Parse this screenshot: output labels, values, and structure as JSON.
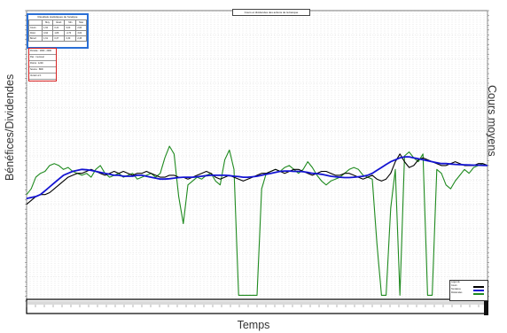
{
  "chart_data": {
    "type": "line",
    "title": "",
    "xlabel": "Temps",
    "ylabel": "Bénéfices/Dividendes",
    "y2label": "Cours moyens",
    "grid": true,
    "legend_position": "bottom-right",
    "x": [
      0,
      1,
      2,
      3,
      4,
      5,
      6,
      7,
      8,
      9,
      10,
      11,
      12,
      13,
      14,
      15,
      16,
      17,
      18,
      19,
      20,
      21,
      22,
      23,
      24,
      25,
      26,
      27,
      28,
      29,
      30,
      31,
      32,
      33,
      34,
      35,
      36,
      37,
      38,
      39,
      40,
      41,
      42,
      43,
      44,
      45,
      46,
      47,
      48,
      49,
      50,
      51,
      52,
      53,
      54,
      55,
      56,
      57,
      58,
      59,
      60,
      61,
      62,
      63,
      64,
      65,
      66,
      67,
      68,
      69,
      70,
      71,
      72,
      73,
      74,
      75,
      76,
      77,
      78,
      79,
      80,
      81,
      82,
      83,
      84,
      85,
      86,
      87,
      88,
      89,
      90,
      91,
      92,
      93,
      94,
      95,
      96,
      97,
      98,
      99,
      100
    ],
    "ylim": [
      -5,
      10
    ],
    "series": [
      {
        "color": "#000000",
        "values": [
          0.0,
          0.2,
          0.4,
          0.5,
          0.5,
          0.6,
          0.8,
          1.0,
          1.2,
          1.4,
          1.5,
          1.6,
          1.6,
          1.7,
          1.8,
          1.7,
          1.6,
          1.5,
          1.6,
          1.7,
          1.6,
          1.7,
          1.6,
          1.5,
          1.6,
          1.6,
          1.7,
          1.6,
          1.5,
          1.4,
          1.4,
          1.5,
          1.5,
          1.4,
          1.4,
          1.3,
          1.4,
          1.5,
          1.6,
          1.7,
          1.6,
          1.4,
          1.3,
          1.4,
          1.5,
          1.4,
          1.3,
          1.2,
          1.3,
          1.4,
          1.5,
          1.6,
          1.6,
          1.7,
          1.8,
          1.7,
          1.6,
          1.7,
          1.8,
          1.8,
          1.7,
          1.6,
          1.5,
          1.6,
          1.7,
          1.7,
          1.6,
          1.5,
          1.5,
          1.6,
          1.6,
          1.5,
          1.4,
          1.3,
          1.4,
          1.5,
          1.3,
          1.2,
          1.3,
          1.6,
          2.2,
          2.6,
          2.2,
          1.9,
          2.0,
          2.3,
          2.4,
          2.3,
          2.2,
          2.1,
          2.0,
          2.0,
          2.1,
          2.2,
          2.1,
          2.0,
          2.0,
          2.0,
          2.1,
          2.1,
          2.0
        ]
      },
      {
        "color": "#1414d2",
        "values": [
          0.3,
          0.35,
          0.4,
          0.5,
          0.7,
          0.9,
          1.1,
          1.3,
          1.5,
          1.6,
          1.7,
          1.75,
          1.8,
          1.78,
          1.75,
          1.7,
          1.65,
          1.6,
          1.55,
          1.5,
          1.5,
          1.45,
          1.45,
          1.45,
          1.5,
          1.5,
          1.45,
          1.4,
          1.35,
          1.3,
          1.3,
          1.32,
          1.35,
          1.38,
          1.4,
          1.4,
          1.4,
          1.42,
          1.45,
          1.48,
          1.5,
          1.5,
          1.5,
          1.5,
          1.48,
          1.45,
          1.43,
          1.4,
          1.4,
          1.42,
          1.45,
          1.5,
          1.55,
          1.6,
          1.65,
          1.7,
          1.72,
          1.72,
          1.7,
          1.7,
          1.68,
          1.65,
          1.6,
          1.58,
          1.55,
          1.5,
          1.45,
          1.42,
          1.4,
          1.38,
          1.38,
          1.4,
          1.42,
          1.45,
          1.5,
          1.6,
          1.75,
          1.9,
          2.05,
          2.2,
          2.3,
          2.4,
          2.45,
          2.45,
          2.4,
          2.35,
          2.3,
          2.25,
          2.2,
          2.15,
          2.1,
          2.1,
          2.08,
          2.06,
          2.05,
          2.04,
          2.03,
          2.02,
          2.02,
          2.01,
          2.0
        ]
      },
      {
        "color": "#1f8a1f",
        "values": [
          0.5,
          0.8,
          1.4,
          1.6,
          1.7,
          2.0,
          2.1,
          2.0,
          1.8,
          1.9,
          1.7,
          1.6,
          1.5,
          1.6,
          1.4,
          1.8,
          2.0,
          1.6,
          1.4,
          1.5,
          1.6,
          1.4,
          1.5,
          1.6,
          1.3,
          1.4,
          1.5,
          1.6,
          1.4,
          1.6,
          2.4,
          3.0,
          2.6,
          0.4,
          -1.0,
          1.0,
          1.2,
          1.4,
          1.3,
          1.5,
          1.6,
          1.2,
          1.0,
          2.3,
          2.8,
          1.8,
          -4.7,
          -4.7,
          -4.7,
          -4.7,
          -4.7,
          0.8,
          1.6,
          1.7,
          1.8,
          1.7,
          1.9,
          2.0,
          1.8,
          1.6,
          1.8,
          2.2,
          1.9,
          1.5,
          1.2,
          1.0,
          1.2,
          1.3,
          1.4,
          1.6,
          1.8,
          1.9,
          1.8,
          1.5,
          1.4,
          1.3,
          -2.0,
          -4.7,
          -4.7,
          -0.2,
          1.8,
          -4.7,
          2.5,
          2.7,
          2.4,
          2.2,
          2.6,
          -4.7,
          -4.7,
          1.8,
          1.6,
          1.0,
          0.8,
          1.2,
          1.5,
          1.8,
          1.6,
          1.9,
          2.0,
          2.1,
          2.0
        ]
      }
    ]
  },
  "annotations": {
    "title_box": "Cours et dividendes des actions de la banque",
    "stats_table": {
      "title": "Résultats statistiques de l'analyse",
      "headers": [
        "",
        "Moy.",
        "Écart",
        "Min",
        "Max"
      ],
      "rows": [
        [
          "Cours",
          "1,62",
          "0,41",
          "0,00",
          "2,60"
        ],
        [
          "Divid.",
          "0,94",
          "1,86",
          "-4,70",
          "3,00"
        ],
        [
          "Bénéf.",
          "1,61",
          "0,37",
          "0,30",
          "2,45"
        ]
      ]
    },
    "info_box": [
      "Période : 1900 - 2000",
      "Pas : mensuel",
      "Points : 1200",
      "Source : BDF",
      "Version 2.1"
    ],
    "legend_box": {
      "title": "Légende",
      "items": [
        "Cours",
        "Tendance",
        "Dividendes"
      ]
    }
  }
}
